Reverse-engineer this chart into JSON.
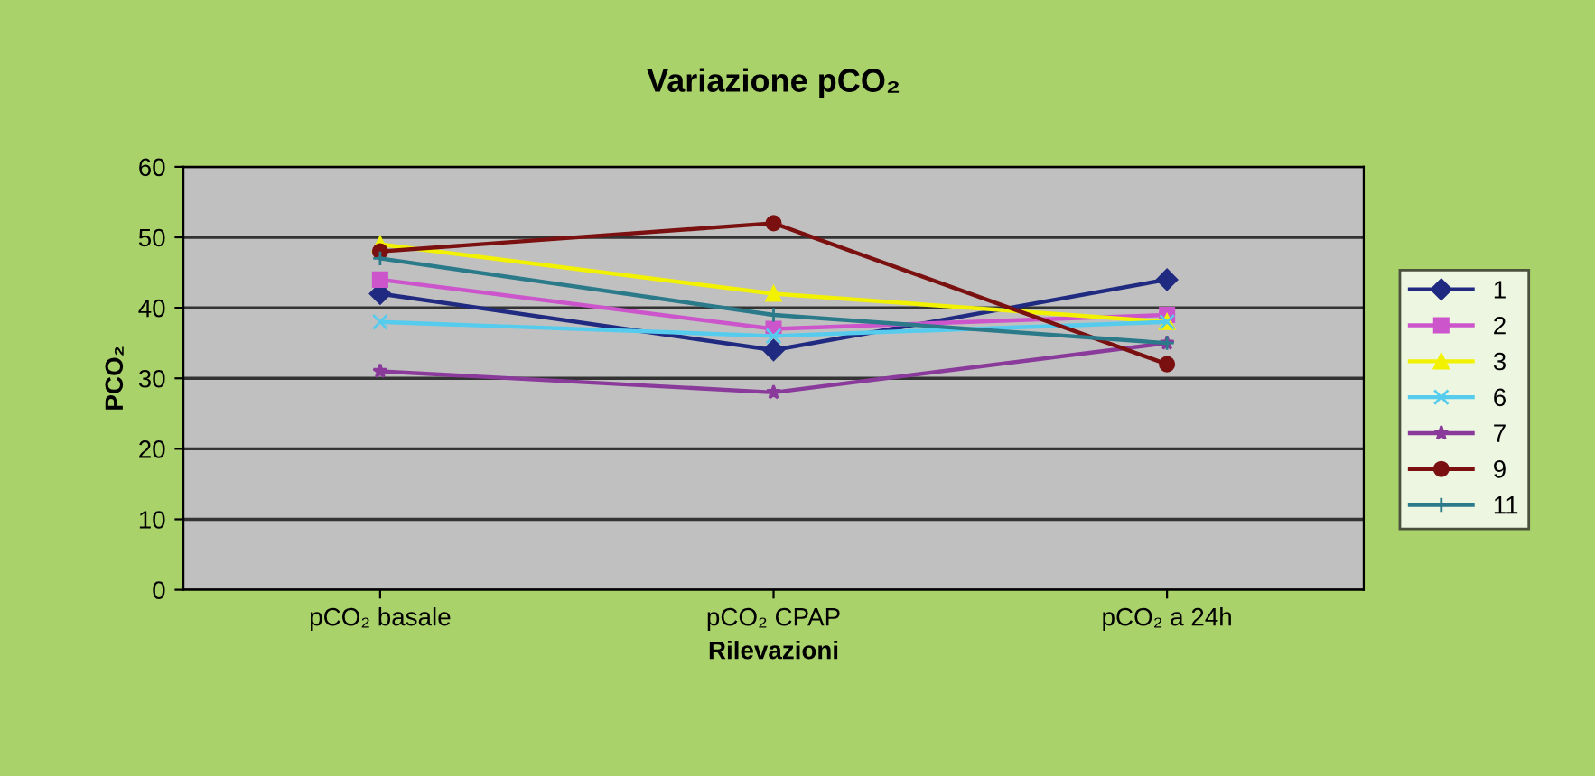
{
  "chart_data": {
    "type": "line",
    "title": "Variazione pCO₂",
    "xlabel": "Rilevazioni",
    "ylabel": "PCO₂",
    "categories": [
      "pCO₂ basale",
      "pCO₂ CPAP",
      "pCO₂ a 24h"
    ],
    "series": [
      {
        "name": "1",
        "color": "#1f2a80",
        "marker": "diamond",
        "values": [
          42,
          34,
          44
        ]
      },
      {
        "name": "2",
        "color": "#cc55cc",
        "marker": "square",
        "values": [
          44,
          37,
          39
        ]
      },
      {
        "name": "3",
        "color": "#f2f200",
        "marker": "triangle",
        "values": [
          49,
          42,
          38
        ]
      },
      {
        "name": "6",
        "color": "#55ccee",
        "marker": "cross",
        "values": [
          38,
          36,
          38
        ]
      },
      {
        "name": "7",
        "color": "#8a3a9a",
        "marker": "star",
        "values": [
          31,
          28,
          35
        ]
      },
      {
        "name": "9",
        "color": "#7a1010",
        "marker": "circle",
        "values": [
          48,
          52,
          32
        ]
      },
      {
        "name": "11",
        "color": "#2a7a8a",
        "marker": "plus",
        "values": [
          47,
          39,
          35
        ]
      }
    ],
    "ylim": [
      0,
      60
    ],
    "yticks": [
      0,
      10,
      20,
      30,
      40,
      50,
      60
    ],
    "grid": "y",
    "legend": "right"
  }
}
